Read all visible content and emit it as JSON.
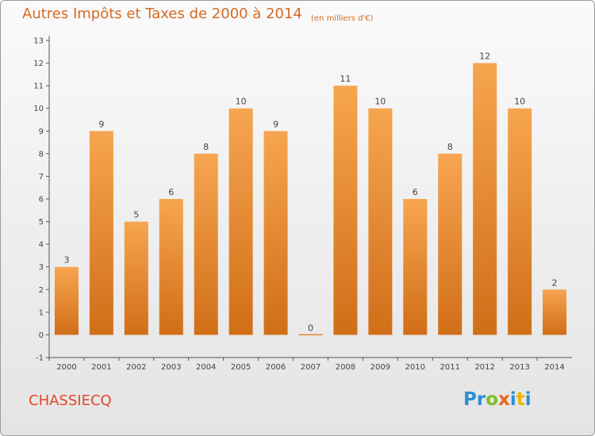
{
  "header": {
    "title": "Autres Impôts et Taxes de 2000 à 2014",
    "subtitle": "(en milliers d'€)"
  },
  "footer": {
    "commune": "CHASSIECQ",
    "logo_text": "Proxiti",
    "logo_letters": [
      {
        "ch": "P",
        "color": "#2d8fd5"
      },
      {
        "ch": "r",
        "color": "#2d8fd5"
      },
      {
        "ch": "o",
        "color": "#7cbd27"
      },
      {
        "ch": "x",
        "color": "#e9641c"
      },
      {
        "ch": "i",
        "color": "#2d8fd5"
      },
      {
        "ch": "t",
        "color": "#f0b400"
      },
      {
        "ch": "i",
        "color": "#2d8fd5"
      }
    ]
  },
  "colors": {
    "bar_top": "#f7a550",
    "bar_bottom": "#d16e18",
    "axis": "#555555",
    "title": "#d56a22",
    "commune": "#e4452b"
  },
  "chart_data": {
    "type": "bar",
    "title": "Autres Impôts et Taxes de 2000 à 2014",
    "subtitle": "(en milliers d'€)",
    "xlabel": "",
    "ylabel": "",
    "categories": [
      "2000",
      "2001",
      "2002",
      "2003",
      "2004",
      "2005",
      "2006",
      "2007",
      "2008",
      "2009",
      "2010",
      "2011",
      "2012",
      "2013",
      "2014"
    ],
    "values": [
      3,
      9,
      5,
      6,
      8,
      10,
      9,
      0,
      11,
      10,
      6,
      8,
      12,
      10,
      2
    ],
    "ylim": [
      -1,
      13
    ],
    "yticks": [
      -1,
      0,
      1,
      2,
      3,
      4,
      5,
      6,
      7,
      8,
      9,
      10,
      11,
      12,
      13
    ],
    "grid": false,
    "legend": "none"
  }
}
